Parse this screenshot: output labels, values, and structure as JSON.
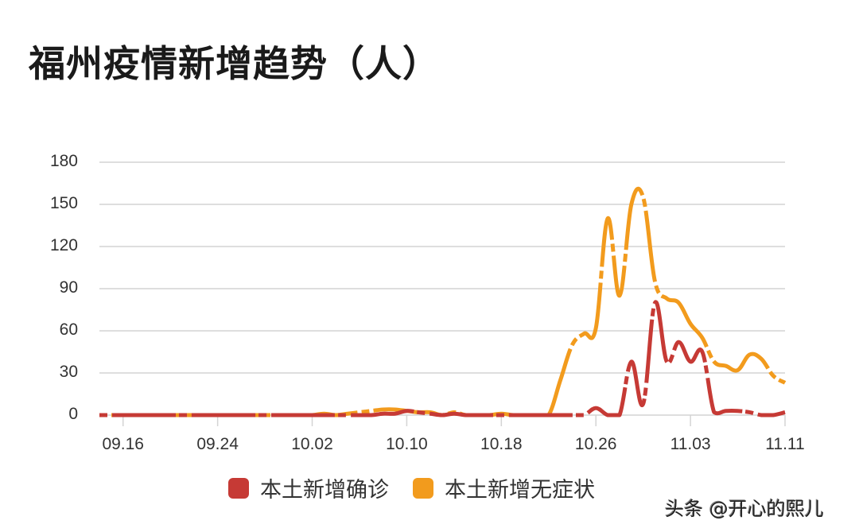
{
  "title": "福州疫情新增趋势（人）",
  "watermark": "头条 @开心的熙儿",
  "legend": [
    {
      "label": "本土新增确诊",
      "color": "#c63a35"
    },
    {
      "label": "本土新增无症状",
      "color": "#f29b1d"
    }
  ],
  "y_ticks": [
    "180",
    "150",
    "120",
    "90",
    "60",
    "30",
    "0"
  ],
  "x_ticks": [
    "09.16",
    "09.24",
    "10.02",
    "10.10",
    "10.18",
    "10.26",
    "11.03",
    "11.11"
  ],
  "chart_data": {
    "type": "line",
    "title": "福州疫情新增趋势（人）",
    "xlabel": "",
    "ylabel": "",
    "ylim": [
      0,
      180
    ],
    "yticks": [
      0,
      30,
      60,
      90,
      120,
      150,
      180
    ],
    "grid": true,
    "legend_position": "bottom",
    "x": [
      "09.14",
      "09.15",
      "09.16",
      "09.17",
      "09.18",
      "09.19",
      "09.20",
      "09.21",
      "09.22",
      "09.23",
      "09.24",
      "09.25",
      "09.26",
      "09.27",
      "09.28",
      "09.29",
      "09.30",
      "10.01",
      "10.02",
      "10.03",
      "10.04",
      "10.05",
      "10.06",
      "10.07",
      "10.08",
      "10.09",
      "10.10",
      "10.11",
      "10.12",
      "10.13",
      "10.14",
      "10.15",
      "10.16",
      "10.17",
      "10.18",
      "10.19",
      "10.20",
      "10.21",
      "10.22",
      "10.23",
      "10.24",
      "10.25",
      "10.26",
      "10.27",
      "10.28",
      "10.29",
      "10.30",
      "10.31",
      "11.01",
      "11.02",
      "11.03",
      "11.04",
      "11.05",
      "11.06",
      "11.07",
      "11.08",
      "11.09",
      "11.10",
      "11.11"
    ],
    "series": [
      {
        "name": "本土新增确诊",
        "color": "#c63a35",
        "values": [
          0,
          0,
          0,
          0,
          0,
          0,
          0,
          0,
          0,
          0,
          0,
          0,
          0,
          0,
          0,
          0,
          0,
          0,
          0,
          0,
          0,
          0,
          0,
          0,
          1,
          1,
          3,
          2,
          1,
          0,
          1,
          0,
          0,
          0,
          0,
          0,
          0,
          0,
          0,
          0,
          0,
          0,
          5,
          0,
          0,
          38,
          8,
          80,
          38,
          52,
          38,
          45,
          2,
          3,
          3,
          2,
          0,
          0,
          2
        ]
      },
      {
        "name": "本土新增无症状",
        "color": "#f29b1d",
        "values": [
          0,
          0,
          0,
          0,
          0,
          0,
          0,
          0,
          0,
          0,
          0,
          0,
          0,
          0,
          0,
          0,
          0,
          0,
          0,
          1,
          0,
          1,
          2,
          3,
          4,
          4,
          3,
          2,
          2,
          0,
          2,
          0,
          0,
          0,
          1,
          0,
          0,
          0,
          0,
          25,
          50,
          58,
          62,
          140,
          85,
          150,
          155,
          95,
          83,
          80,
          65,
          55,
          38,
          35,
          32,
          43,
          40,
          28,
          23
        ]
      }
    ]
  }
}
